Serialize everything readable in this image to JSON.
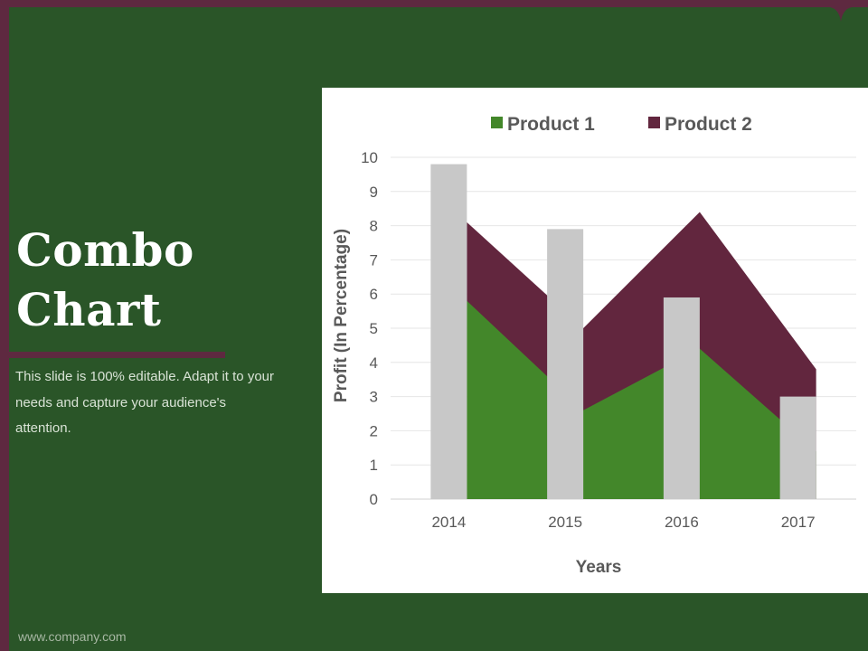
{
  "slide": {
    "title_line1": "Combo",
    "title_line2": "Chart",
    "subtitle": "This slide is 100% editable. Adapt it to your needs and capture your audience's attention.",
    "footer": "www.company.com"
  },
  "colors": {
    "background": "#2a5528",
    "accent": "#5e2940",
    "product1": "#43872a",
    "product2": "#62263e",
    "bars": "#c8c8c8"
  },
  "chart_data": {
    "type": "combo",
    "title": "",
    "categories": [
      "2014",
      "2015",
      "2016",
      "2017"
    ],
    "xlabel": "Years",
    "ylabel": "Profit  (In Percentage)",
    "ylim": [
      0,
      10
    ],
    "yticks": [
      "0",
      "1",
      "2",
      "3",
      "4",
      "5",
      "6",
      "7",
      "8",
      "9",
      "10"
    ],
    "grid": true,
    "legend": "top",
    "series": [
      {
        "name": "Product 1",
        "type": "area",
        "color": "#43872a",
        "values": [
          5.8,
          2.6,
          4.4,
          1.4
        ]
      },
      {
        "name": "Product 2",
        "type": "area",
        "color": "#62263e",
        "values": [
          8.1,
          5.0,
          8.4,
          3.8
        ]
      },
      {
        "type": "bar",
        "color": "#c8c8c8",
        "values": [
          9.8,
          7.9,
          5.9,
          3.0
        ]
      }
    ]
  }
}
